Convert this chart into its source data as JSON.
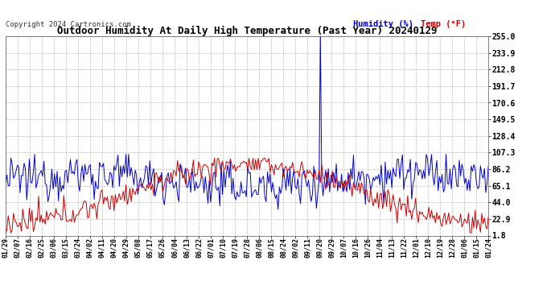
{
  "title": "Outdoor Humidity At Daily High Temperature (Past Year) 20240129",
  "copyright": "Copyright 2024 Cartronics.com",
  "legend_humidity": "Humidity (%)",
  "legend_temp": "Temp (°F)",
  "humidity_color": "#0000cc",
  "temp_color": "#cc0000",
  "background_color": "#ffffff",
  "grid_color": "#bbbbbb",
  "yticks": [
    1.8,
    22.9,
    44.0,
    65.1,
    86.2,
    107.3,
    128.4,
    149.5,
    170.6,
    191.7,
    212.8,
    233.9,
    255.0
  ],
  "xtick_labels": [
    "01/29",
    "02/07",
    "02/16",
    "02/25",
    "03/06",
    "03/15",
    "03/24",
    "04/02",
    "04/11",
    "04/20",
    "04/29",
    "05/08",
    "05/17",
    "05/26",
    "06/04",
    "06/13",
    "06/22",
    "07/01",
    "07/10",
    "07/19",
    "07/28",
    "08/06",
    "08/15",
    "08/24",
    "09/02",
    "09/11",
    "09/20",
    "09/29",
    "10/07",
    "10/16",
    "10/26",
    "11/04",
    "11/13",
    "11/22",
    "12/01",
    "12/10",
    "12/19",
    "12/28",
    "01/06",
    "01/15",
    "01/24"
  ],
  "ylim": [
    1.8,
    255.0
  ],
  "n_points": 366
}
